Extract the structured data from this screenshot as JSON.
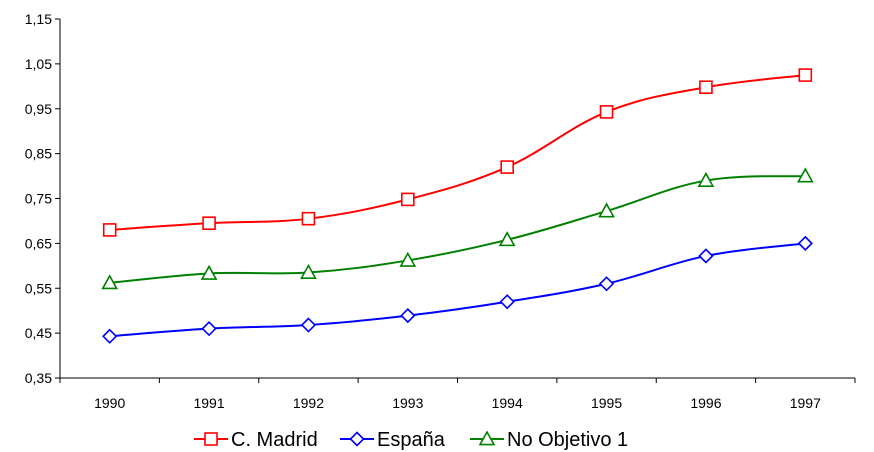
{
  "chart_data": {
    "type": "line",
    "categories": [
      "1990",
      "1991",
      "1992",
      "1993",
      "1994",
      "1995",
      "1996",
      "1997"
    ],
    "yticks": [
      "0,35",
      "0,45",
      "0,55",
      "0,65",
      "0,75",
      "0,85",
      "0,95",
      "1,05",
      "1,15"
    ],
    "ylim": [
      0.35,
      1.15
    ],
    "grid": false,
    "legend_position": "bottom",
    "series": [
      {
        "name": "C. Madrid",
        "color": "#ff0000",
        "marker": "square",
        "values": [
          0.68,
          0.695,
          0.705,
          0.748,
          0.82,
          0.943,
          0.998,
          1.025
        ]
      },
      {
        "name": "España",
        "color": "#0000ff",
        "marker": "diamond",
        "values": [
          0.443,
          0.46,
          0.468,
          0.489,
          0.52,
          0.56,
          0.622,
          0.65
        ]
      },
      {
        "name": "No Objetivo 1",
        "color": "#008000",
        "marker": "triangle",
        "values": [
          0.562,
          0.583,
          0.585,
          0.612,
          0.658,
          0.722,
          0.79,
          0.8
        ]
      }
    ]
  }
}
